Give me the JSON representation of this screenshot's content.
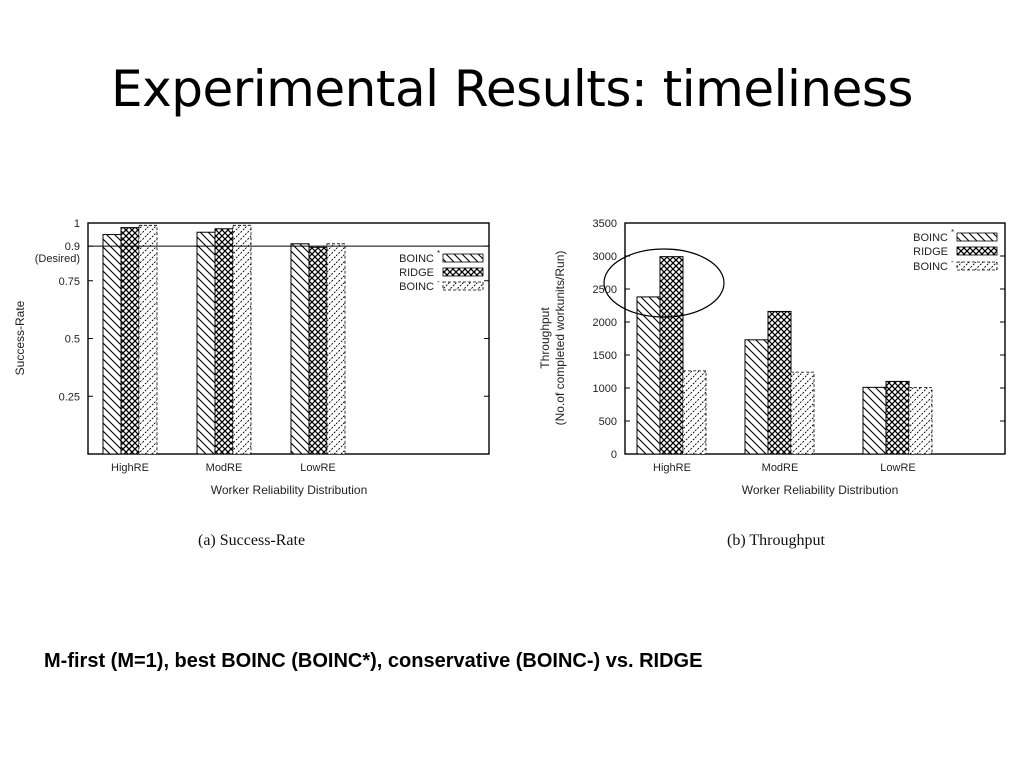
{
  "slide": {
    "title": "Experimental Results: timeliness",
    "footnote": "M-first (M=1), best BOINC (BOINC*), conservative (BOINC-) vs. RIDGE"
  },
  "captions": {
    "a": "(a) Success-Rate",
    "b": "(b) Throughput"
  },
  "colors": {
    "bars": "#000000",
    "background": "#ffffff"
  },
  "chart_data": [
    {
      "type": "bar",
      "categories": [
        "HighRE",
        "ModRE",
        "LowRE"
      ],
      "series": [
        {
          "name": "BOINC*",
          "values": [
            0.95,
            0.96,
            0.91
          ]
        },
        {
          "name": "RIDGE",
          "values": [
            0.98,
            0.975,
            0.895
          ]
        },
        {
          "name": "BOINC-",
          "values": [
            0.99,
            0.99,
            0.91
          ]
        }
      ],
      "xlabel": "Worker Reliability Distribution",
      "ylabel": "Success-Rate",
      "ylim": [
        0,
        1
      ],
      "yticks": [
        "0.25",
        "0.5",
        "0.75",
        "0.9",
        "1"
      ],
      "ytick_values": [
        0.25,
        0.5,
        0.75,
        0.9,
        1
      ],
      "hline": {
        "value": 0.9,
        "label": "(Desired)"
      },
      "legend": "top-right"
    },
    {
      "type": "bar",
      "categories": [
        "HighRE",
        "ModRE",
        "LowRE"
      ],
      "series": [
        {
          "name": "BOINC*",
          "values": [
            2380,
            1730,
            1010
          ]
        },
        {
          "name": "RIDGE",
          "values": [
            2990,
            2160,
            1100
          ]
        },
        {
          "name": "BOINC-",
          "values": [
            1260,
            1240,
            1010
          ]
        }
      ],
      "xlabel": "Worker Reliability Distribution",
      "ylabel": [
        "Throughput",
        "(No.of completed workunits/Run)"
      ],
      "ylim": [
        0,
        3500
      ],
      "yticks": [
        "0",
        "500",
        "1000",
        "1500",
        "2000",
        "2500",
        "3000",
        "3500"
      ],
      "ytick_values": [
        0,
        500,
        1000,
        1500,
        2000,
        2500,
        3000,
        3500
      ],
      "annotation": "ellipse around HighRE BOINC* and RIDGE bars",
      "legend": "top-right"
    }
  ]
}
